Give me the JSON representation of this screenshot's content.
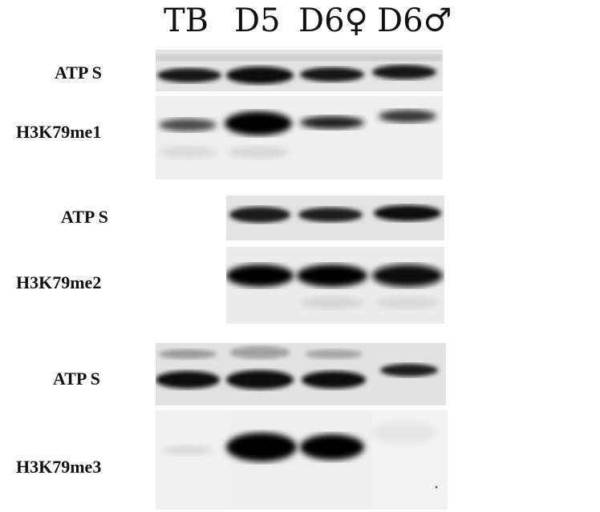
{
  "lanes": [
    "TB",
    "D5",
    "D6♀",
    "D6♂"
  ],
  "rows": {
    "row1": "ATP S",
    "row2": "H3K79me1",
    "row3": "ATP S",
    "row4": "H3K79me2",
    "row5": "ATP S",
    "row6": "H3K79me3"
  },
  "band_intensity": {
    "row1": [
      0.8,
      0.95,
      0.9,
      0.9
    ],
    "row2": [
      0.6,
      1.0,
      0.85,
      0.6
    ],
    "row3": [
      null,
      0.85,
      0.85,
      0.95
    ],
    "row4": [
      null,
      1.0,
      1.0,
      1.0
    ],
    "row5": [
      1.0,
      1.0,
      1.0,
      0.8
    ],
    "row6": [
      0.1,
      1.0,
      1.0,
      0.0
    ]
  }
}
